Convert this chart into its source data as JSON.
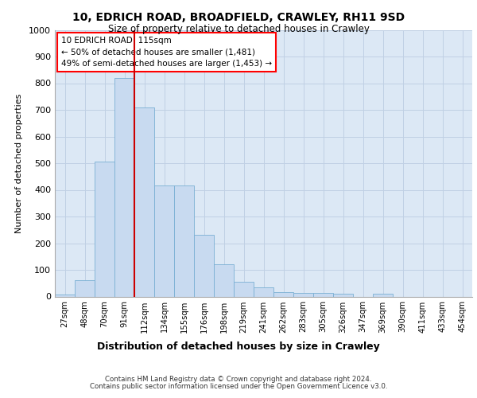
{
  "title_line1": "10, EDRICH ROAD, BROADFIELD, CRAWLEY, RH11 9SD",
  "title_line2": "Size of property relative to detached houses in Crawley",
  "xlabel": "Distribution of detached houses by size in Crawley",
  "ylabel": "Number of detached properties",
  "footer_line1": "Contains HM Land Registry data © Crown copyright and database right 2024.",
  "footer_line2": "Contains public sector information licensed under the Open Government Licence v3.0.",
  "categories": [
    "27sqm",
    "48sqm",
    "70sqm",
    "91sqm",
    "112sqm",
    "134sqm",
    "155sqm",
    "176sqm",
    "198sqm",
    "219sqm",
    "241sqm",
    "262sqm",
    "283sqm",
    "305sqm",
    "326sqm",
    "347sqm",
    "369sqm",
    "390sqm",
    "411sqm",
    "433sqm",
    "454sqm"
  ],
  "values": [
    8,
    60,
    505,
    820,
    710,
    415,
    415,
    230,
    120,
    55,
    35,
    15,
    12,
    12,
    10,
    0,
    10,
    0,
    0,
    0,
    0
  ],
  "bar_color": "#c8daf0",
  "bar_edge_color": "#7aafd4",
  "grid_color": "#c0d0e4",
  "background_color": "#dce8f5",
  "annotation_line1": "10 EDRICH ROAD: 115sqm",
  "annotation_line2": "← 50% of detached houses are smaller (1,481)",
  "annotation_line3": "49% of semi-detached houses are larger (1,453) →",
  "vline_color": "#cc0000",
  "vline_x": 3.5,
  "ylim_max": 1000,
  "yticks": [
    0,
    100,
    200,
    300,
    400,
    500,
    600,
    700,
    800,
    900,
    1000
  ]
}
